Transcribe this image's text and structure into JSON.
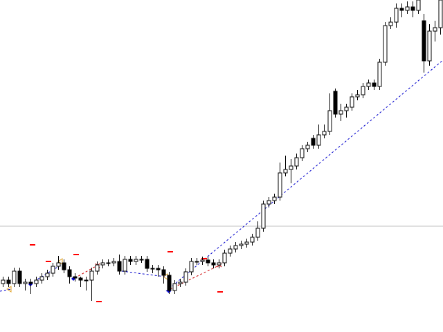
{
  "chart_data": {
    "type": "candlestick",
    "open": [
      70,
      75,
      70,
      88,
      70,
      72,
      70,
      75,
      80,
      85,
      95,
      100,
      90,
      80,
      78,
      75,
      75,
      88,
      97,
      100,
      100,
      102,
      88,
      105,
      102,
      105,
      105,
      92,
      92,
      90,
      82,
      60,
      70,
      72,
      87,
      102,
      102,
      104,
      100,
      97,
      100,
      114,
      120,
      125,
      127,
      130,
      137,
      150,
      185,
      190,
      195,
      230,
      235,
      240,
      252,
      265,
      280,
      270,
      285,
      290,
      348,
      315,
      320,
      325,
      340,
      343,
      355,
      360,
      355,
      390,
      443,
      448,
      468,
      465,
      470,
      465,
      450,
      392,
      435,
      440
    ],
    "high": [
      80,
      80,
      93,
      93,
      77,
      77,
      80,
      85,
      90,
      100,
      110,
      105,
      95,
      85,
      80,
      80,
      93,
      102,
      105,
      105,
      107,
      112,
      110,
      110,
      110,
      110,
      110,
      97,
      97,
      95,
      87,
      75,
      77,
      92,
      107,
      107,
      109,
      109,
      105,
      105,
      119,
      125,
      130,
      132,
      135,
      142,
      160,
      190,
      195,
      200,
      245,
      255,
      250,
      258,
      270,
      275,
      285,
      300,
      300,
      345,
      352,
      330,
      330,
      345,
      350,
      360,
      365,
      365,
      395,
      448,
      455,
      475,
      475,
      478,
      478,
      485,
      460,
      445,
      450,
      490
    ],
    "low": [
      65,
      65,
      65,
      65,
      60,
      55,
      65,
      70,
      75,
      80,
      90,
      85,
      70,
      73,
      65,
      60,
      45,
      83,
      92,
      95,
      95,
      83,
      83,
      97,
      97,
      100,
      87,
      85,
      80,
      70,
      55,
      55,
      65,
      67,
      82,
      97,
      97,
      95,
      92,
      92,
      95,
      109,
      115,
      120,
      122,
      125,
      132,
      145,
      180,
      185,
      190,
      225,
      215,
      235,
      247,
      260,
      265,
      265,
      280,
      285,
      310,
      305,
      310,
      320,
      335,
      338,
      350,
      350,
      350,
      385,
      438,
      440,
      455,
      460,
      455,
      460,
      375,
      385,
      420,
      430
    ],
    "close": [
      75,
      70,
      88,
      70,
      72,
      70,
      75,
      80,
      85,
      95,
      100,
      90,
      80,
      78,
      75,
      75,
      88,
      97,
      100,
      100,
      102,
      88,
      105,
      102,
      105,
      105,
      92,
      92,
      90,
      82,
      60,
      70,
      72,
      87,
      102,
      102,
      104,
      100,
      97,
      100,
      114,
      120,
      125,
      127,
      130,
      137,
      150,
      185,
      190,
      195,
      230,
      235,
      240,
      252,
      265,
      270,
      270,
      285,
      290,
      320,
      315,
      320,
      325,
      340,
      343,
      355,
      360,
      355,
      390,
      443,
      448,
      468,
      465,
      470,
      465,
      480,
      392,
      435,
      440,
      480
    ],
    "up_color": "#ffffff",
    "down_color": "#000000",
    "line_color": "#000000",
    "hline": 153,
    "hline_color": "#c0c0c0",
    "ylim": [
      0,
      480
    ]
  }
}
